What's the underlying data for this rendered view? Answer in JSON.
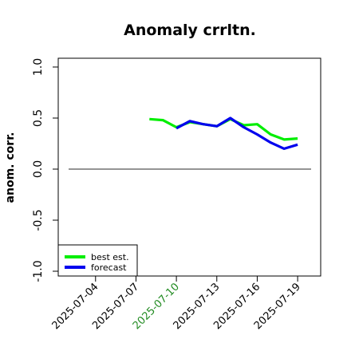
{
  "chart_data": {
    "type": "line",
    "title": "Anomaly crrltn.",
    "xlabel": "",
    "ylabel": "anom. corr.",
    "ylim": [
      -1.0,
      1.0
    ],
    "xlim": [
      "2025-07-02",
      "2025-07-20"
    ],
    "yticks": [
      "-1.0",
      "-0.5",
      "0.0",
      "0.5",
      "1.0"
    ],
    "xticks": [
      {
        "label": "2025-07-04",
        "date": "2025-07-04",
        "color": "#000000"
      },
      {
        "label": "2025-07-07",
        "date": "2025-07-07",
        "color": "#000000"
      },
      {
        "label": "2025-07-10",
        "date": "2025-07-10",
        "color": "#228B22"
      },
      {
        "label": "2025-07-13",
        "date": "2025-07-13",
        "color": "#000000"
      },
      {
        "label": "2025-07-16",
        "date": "2025-07-16",
        "color": "#000000"
      },
      {
        "label": "2025-07-19",
        "date": "2025-07-19",
        "color": "#000000"
      }
    ],
    "reference_line": {
      "y": 0.0,
      "color": "#555555"
    },
    "legend": {
      "position": "bottom-left",
      "entries": [
        "best est.",
        "forecast"
      ]
    },
    "grid": false,
    "series": [
      {
        "name": "best est.",
        "color": "#00ee00",
        "x": [
          "2025-07-08",
          "2025-07-09",
          "2025-07-10",
          "2025-07-11",
          "2025-07-12",
          "2025-07-13",
          "2025-07-14",
          "2025-07-15",
          "2025-07-16",
          "2025-07-17",
          "2025-07-18",
          "2025-07-19"
        ],
        "y": [
          0.49,
          0.48,
          0.41,
          0.46,
          0.44,
          0.42,
          0.49,
          0.43,
          0.44,
          0.34,
          0.29,
          0.3
        ]
      },
      {
        "name": "forecast",
        "color": "#0000ee",
        "x": [
          "2025-07-10",
          "2025-07-11",
          "2025-07-12",
          "2025-07-13",
          "2025-07-14",
          "2025-07-15",
          "2025-07-16",
          "2025-07-17",
          "2025-07-18",
          "2025-07-19"
        ],
        "y": [
          0.4,
          0.47,
          0.44,
          0.42,
          0.5,
          0.41,
          0.34,
          0.26,
          0.2,
          0.24
        ]
      }
    ]
  }
}
